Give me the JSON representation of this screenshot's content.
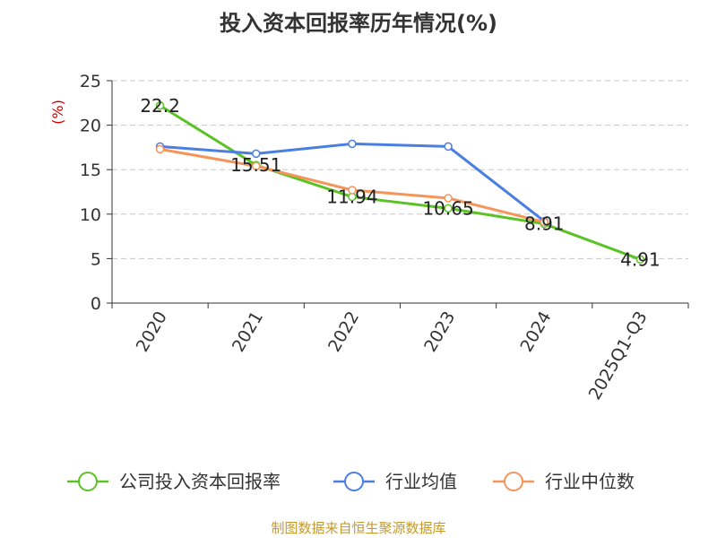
{
  "chart_data": {
    "type": "line",
    "title": "投入资本回报率历年情况(%)",
    "ylabel": "(%)",
    "xlabel": "",
    "categories": [
      "2020",
      "2021",
      "2022",
      "2023",
      "2024",
      "2025Q1-Q3"
    ],
    "ylim": [
      0,
      25
    ],
    "yticks": [
      0,
      5,
      10,
      15,
      20,
      25
    ],
    "grid": true,
    "legend_position": "bottom",
    "series": [
      {
        "name": "公司投入资本回报率",
        "values": [
          22.2,
          15.51,
          11.94,
          10.65,
          8.91,
          4.91
        ],
        "data_labels": [
          "22.2",
          "15.51",
          "11.94",
          "10.65",
          "8.91",
          "4.91"
        ],
        "color": "#5bc225"
      },
      {
        "name": "行业均值",
        "values": [
          17.6,
          16.8,
          17.9,
          17.6,
          9.2,
          null
        ],
        "color": "#4a7ee0"
      },
      {
        "name": "行业中位数",
        "values": [
          17.3,
          15.4,
          12.7,
          11.8,
          9.1,
          null
        ],
        "color": "#f5955a"
      }
    ]
  },
  "footer": {
    "source": "制图数据来自恒生聚源数据库"
  }
}
